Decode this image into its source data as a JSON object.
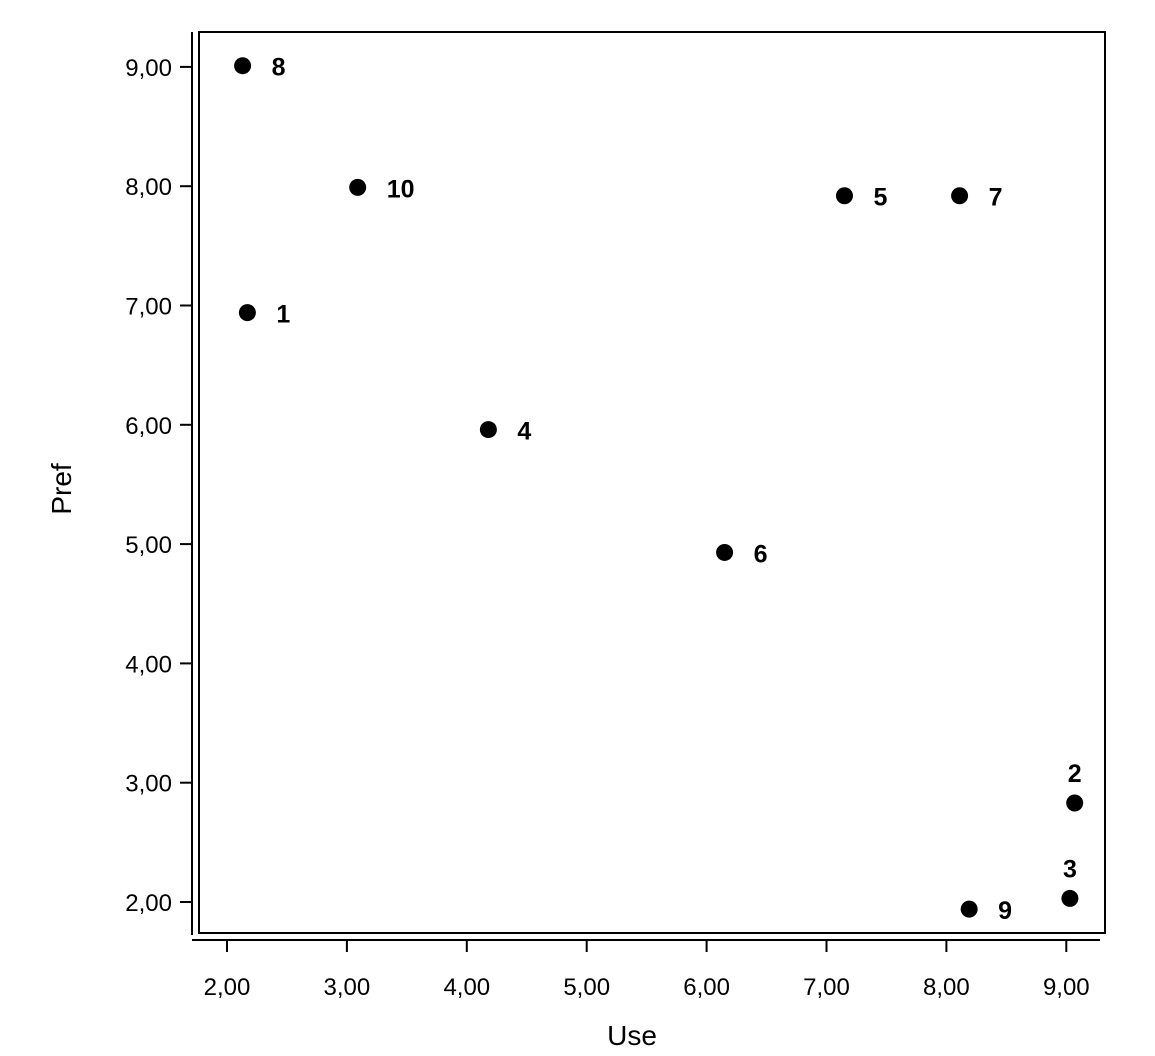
{
  "chart_data": {
    "type": "scatter",
    "title": "",
    "xlabel": "Use",
    "ylabel": "Pref",
    "xlim": [
      1.72,
      9.29
    ],
    "ylim": [
      1.72,
      9.29
    ],
    "x_ticks": [
      "2,00",
      "3,00",
      "4,00",
      "5,00",
      "6,00",
      "7,00",
      "8,00",
      "9,00"
    ],
    "y_ticks": [
      "2,00",
      "3,00",
      "4,00",
      "5,00",
      "6,00",
      "7,00",
      "8,00",
      "9,00"
    ],
    "x_tick_values": [
      2,
      3,
      4,
      5,
      6,
      7,
      8,
      9
    ],
    "y_tick_values": [
      2,
      3,
      4,
      5,
      6,
      7,
      8,
      9
    ],
    "grid": false,
    "points": [
      {
        "label": "1",
        "x": 2.17,
        "y": 6.94,
        "label_pos": "right"
      },
      {
        "label": "2",
        "x": 9.07,
        "y": 2.83,
        "label_pos": "above"
      },
      {
        "label": "3",
        "x": 9.03,
        "y": 2.03,
        "label_pos": "above"
      },
      {
        "label": "4",
        "x": 4.18,
        "y": 5.96,
        "label_pos": "right"
      },
      {
        "label": "5",
        "x": 7.15,
        "y": 7.92,
        "label_pos": "right"
      },
      {
        "label": "6",
        "x": 6.15,
        "y": 4.93,
        "label_pos": "right"
      },
      {
        "label": "7",
        "x": 8.11,
        "y": 7.92,
        "label_pos": "right"
      },
      {
        "label": "8",
        "x": 2.13,
        "y": 9.01,
        "label_pos": "right"
      },
      {
        "label": "9",
        "x": 8.19,
        "y": 1.94,
        "label_pos": "right"
      },
      {
        "label": "10",
        "x": 3.09,
        "y": 7.99,
        "label_pos": "right"
      }
    ]
  }
}
